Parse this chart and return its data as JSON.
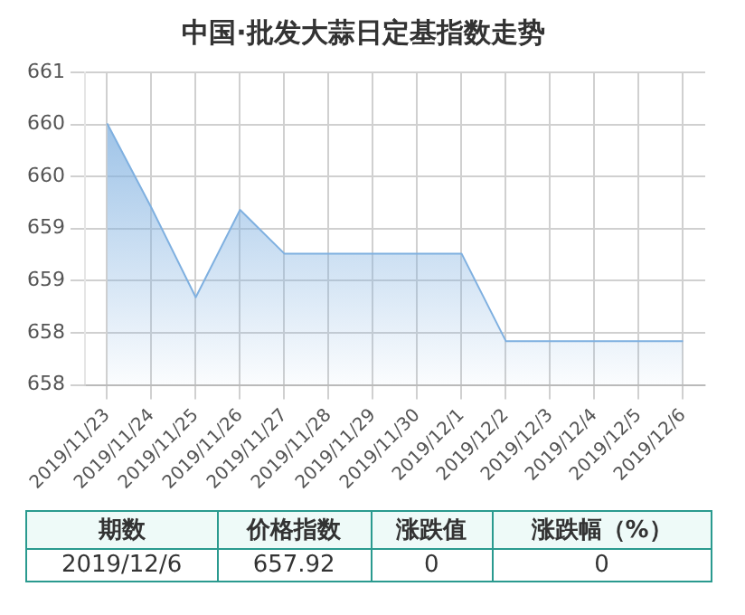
{
  "chart_data": {
    "type": "area",
    "title": "中国·批发大蒜日定基指数走势",
    "categories": [
      "2019/11/23",
      "2019/11/24",
      "2019/11/25",
      "2019/11/26",
      "2019/11/27",
      "2019/11/28",
      "2019/11/29",
      "2019/11/30",
      "2019/12/1",
      "2019/12/2",
      "2019/12/3",
      "2019/12/4",
      "2019/12/5",
      "2019/12/6"
    ],
    "series": [
      {
        "color": "#7fb0e0",
        "values": [
          660.01,
          659.2,
          658.34,
          659.18,
          658.76,
          658.76,
          658.76,
          658.76,
          658.76,
          657.92,
          657.92,
          657.92,
          657.92,
          657.92
        ]
      }
    ],
    "ylim": [
      657.5,
      660.5
    ],
    "yticks": [
      {
        "value": 657.5,
        "label": "658"
      },
      658,
      {
        "value": 658.5,
        "label": "659"
      },
      659,
      {
        "value": 659.5,
        "label": "660"
      },
      660,
      {
        "value": 660.5,
        "label": "661"
      }
    ],
    "grid": true,
    "marker": "none",
    "annotations": [
      "期数",
      "价格指数",
      "涨跌值",
      "涨跌幅（%）",
      "2019/12/6",
      "657.92",
      "0",
      "0"
    ]
  }
}
